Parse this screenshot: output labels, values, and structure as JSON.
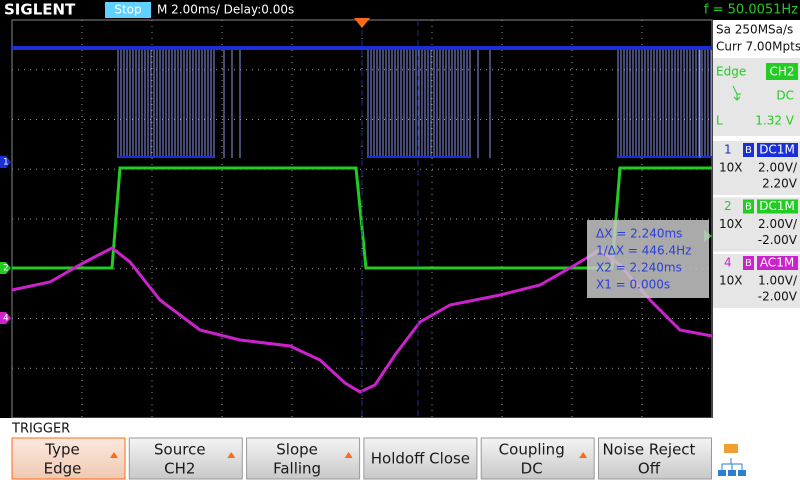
{
  "header": {
    "brand": "SIGLENT",
    "status": "Stop",
    "timebase": "M 2.00ms/ Delay:0.00s",
    "frequency": "f = 50.0051Hz"
  },
  "acquisition": {
    "sample_rate": "Sa 250MSa/s",
    "memory": "Curr 7.00Mpts"
  },
  "trigger_info": {
    "type": "Edge",
    "source": "CH2",
    "coupling": "DC",
    "level_label": "L",
    "level": "1.32 V"
  },
  "channels": [
    {
      "number": "1",
      "bandwidth": "B",
      "coupling": "DC1M",
      "probe": "10X",
      "scale": "2.00V/",
      "offset": "2.20V",
      "color": "#1a2fd6"
    },
    {
      "number": "2",
      "bandwidth": "B",
      "coupling": "DC1M",
      "probe": "10X",
      "scale": "2.00V/",
      "offset": "-2.00V",
      "color": "#22cc22"
    },
    {
      "number": "4",
      "bandwidth": "B",
      "coupling": "AC1M",
      "probe": "10X",
      "scale": "1.00V/",
      "offset": "-2.00V",
      "color": "#cc22cc"
    }
  ],
  "cursors": {
    "lines": [
      "ΔX = 2.240ms",
      "1/ΔX = 446.4Hz",
      "X2 = 2.240ms",
      "X1 = 0.000s"
    ]
  },
  "menu": {
    "title": "TRIGGER",
    "buttons": [
      {
        "label": "Type",
        "value": "Edge"
      },
      {
        "label": "Source",
        "value": "CH2"
      },
      {
        "label": "Slope",
        "value": "Falling"
      },
      {
        "label": "Holdoff Close"
      },
      {
        "label": "Coupling",
        "value": "DC"
      },
      {
        "label": "Noise Reject",
        "value": "Off"
      }
    ]
  }
}
